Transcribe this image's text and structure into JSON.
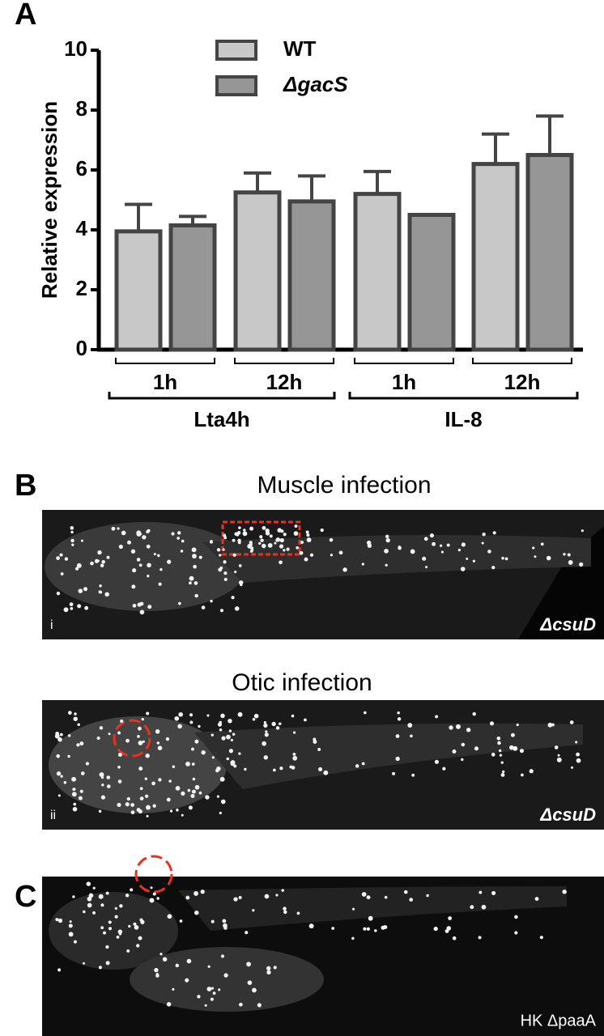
{
  "chart_data": {
    "type": "bar",
    "ylabel": "Relative expression",
    "categories": [
      "1h",
      "12h",
      "1h",
      "12h"
    ],
    "groups": [
      "Lta4h",
      "IL-8"
    ],
    "series": [
      {
        "name": "WT",
        "color": "#c8c8c8",
        "values": [
          3.95,
          5.25,
          5.2,
          6.2
        ],
        "errors": [
          0.9,
          0.65,
          0.75,
          1.0
        ]
      },
      {
        "name": "ΔgacS",
        "color": "#969696",
        "values": [
          4.15,
          4.95,
          4.5,
          6.5
        ],
        "errors": [
          0.3,
          0.85,
          null,
          1.3
        ]
      }
    ],
    "ylim": [
      0,
      10
    ],
    "yticks": [
      0,
      2,
      4,
      6,
      8,
      10
    ],
    "grid": false
  },
  "panels": {
    "a": {
      "label": "A"
    },
    "b": {
      "label": "B",
      "i": {
        "title": "Muscle infection",
        "index": "i",
        "strain": "ΔcsuD"
      },
      "ii": {
        "title": "Otic infection",
        "index": "ii",
        "strain": "ΔcsuD"
      }
    },
    "c": {
      "label": "C",
      "strain": "HK ΔpaaA"
    }
  }
}
